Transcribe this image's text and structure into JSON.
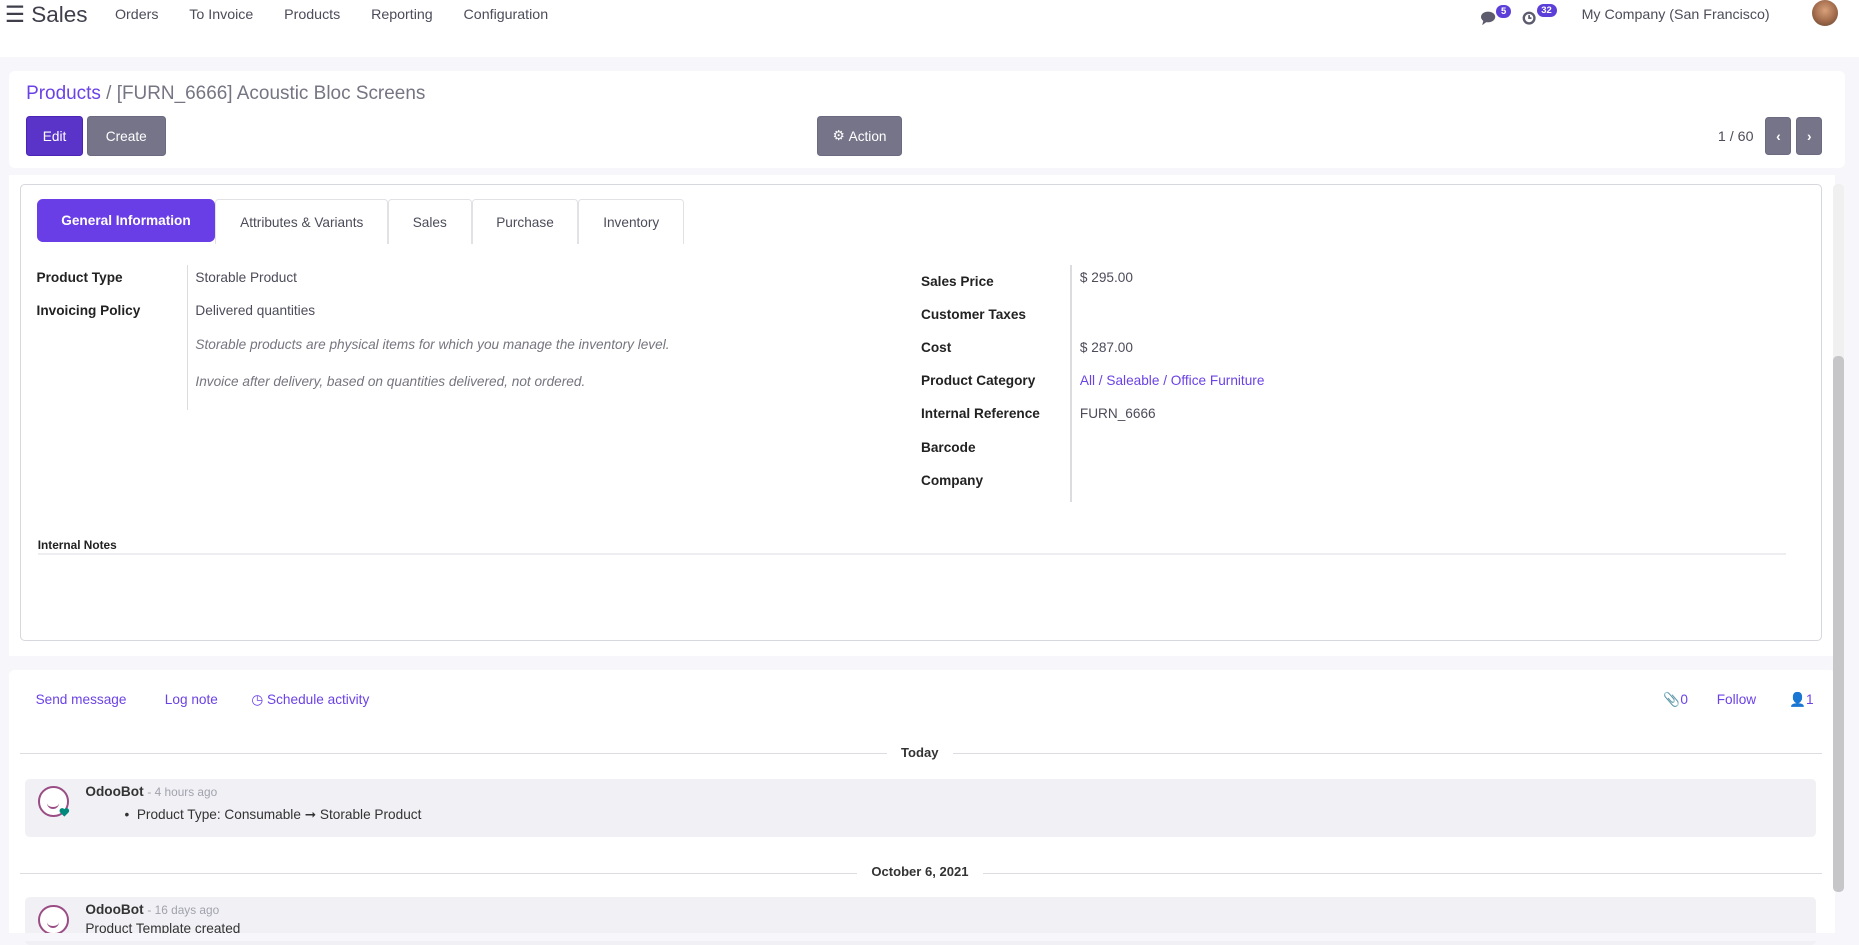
{
  "nav": {
    "app": "Sales",
    "menu": [
      "Orders",
      "To Invoice",
      "Products",
      "Reporting",
      "Configuration"
    ],
    "messages_count": "5",
    "activities_count": "32",
    "company": "My Company (San Francisco)"
  },
  "breadcrumb": {
    "parent": "Products",
    "separator": " / ",
    "current": "[FURN_6666] Acoustic Bloc Screens"
  },
  "toolbar": {
    "edit": "Edit",
    "create": "Create",
    "action": "Action",
    "pager": "1 / 60"
  },
  "tabs": [
    "General Information",
    "Attributes & Variants",
    "Sales",
    "Purchase",
    "Inventory"
  ],
  "general": {
    "left": [
      {
        "label": "Product Type",
        "value": "Storable Product"
      },
      {
        "label": "Invoicing Policy",
        "value": "Delivered quantities"
      }
    ],
    "help1": "Storable products are physical items for which you manage the inventory level.",
    "help2": "Invoice after delivery, based on quantities delivered, not ordered.",
    "right": [
      {
        "label": "Sales Price",
        "value": "$ 295.00"
      },
      {
        "label": "Customer Taxes",
        "value": ""
      },
      {
        "label": "Cost",
        "value": "$ 287.00"
      },
      {
        "label": "Product Category",
        "value": "All / Saleable / Office Furniture"
      },
      {
        "label": "Internal Reference",
        "value": "FURN_6666"
      },
      {
        "label": "Barcode",
        "value": ""
      },
      {
        "label": "Company",
        "value": ""
      }
    ],
    "notes_label": "Internal Notes"
  },
  "chatter": {
    "send_message": "Send message",
    "log_note": "Log note",
    "schedule_activity": "Schedule activity",
    "attachments": "0",
    "follow": "Follow",
    "followers": "1",
    "groups": [
      {
        "date": "Today",
        "author": "OdooBot",
        "ago": "- 4 hours ago",
        "text": "Product Type: Consumable ➞ Storable Product"
      },
      {
        "date": "October 6, 2021",
        "author": "OdooBot",
        "ago": "- 16 days ago",
        "text": "Product Template created"
      }
    ]
  },
  "colors": {
    "accent": "#6a3ee6",
    "button_gray": "#757489"
  }
}
